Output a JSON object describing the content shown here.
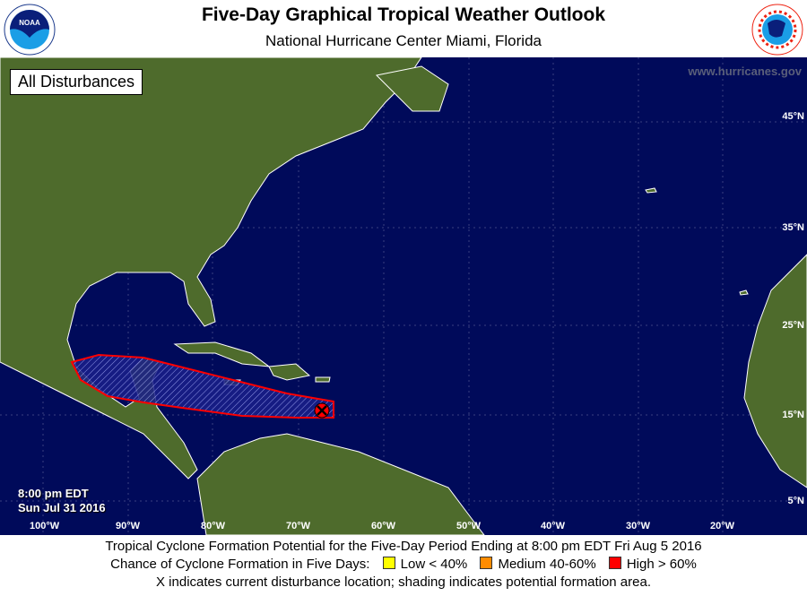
{
  "header": {
    "title": "Five-Day Graphical Tropical Weather Outlook",
    "subtitle": "National Hurricane Center  Miami, Florida",
    "left_logo": "NOAA",
    "right_logo": "NATIONAL WEATHER SERVICE"
  },
  "map": {
    "filter_label": "All Disturbances",
    "website": "www.hurricanes.gov",
    "issued_time": "8:00 pm EDT",
    "issued_date": "Sun Jul 31 2016",
    "longitude_labels": [
      "100°W",
      "90°W",
      "80°W",
      "70°W",
      "60°W",
      "50°W",
      "40°W",
      "30°W",
      "20°W"
    ],
    "latitude_labels": [
      "45°N",
      "35°N",
      "25°N",
      "15°N",
      "5°N"
    ],
    "disturbance": {
      "marker": "x-icon",
      "chance": "High",
      "color": "#ff0000",
      "location": {
        "lat": 15.5,
        "lon": -67.3
      }
    }
  },
  "footer": {
    "line1": "Tropical Cyclone Formation Potential for the Five-Day Period Ending at 8:00 pm EDT Fri Aug 5 2016",
    "legend_title": "Chance of Cyclone Formation in Five Days:",
    "legend": [
      {
        "label": "Low < 40%",
        "color": "#ffff00"
      },
      {
        "label": "Medium 40-60%",
        "color": "#ff8c00"
      },
      {
        "label": "High > 60%",
        "color": "#ff0000"
      }
    ],
    "line3": "X indicates current disturbance location; shading indicates potential formation area."
  }
}
